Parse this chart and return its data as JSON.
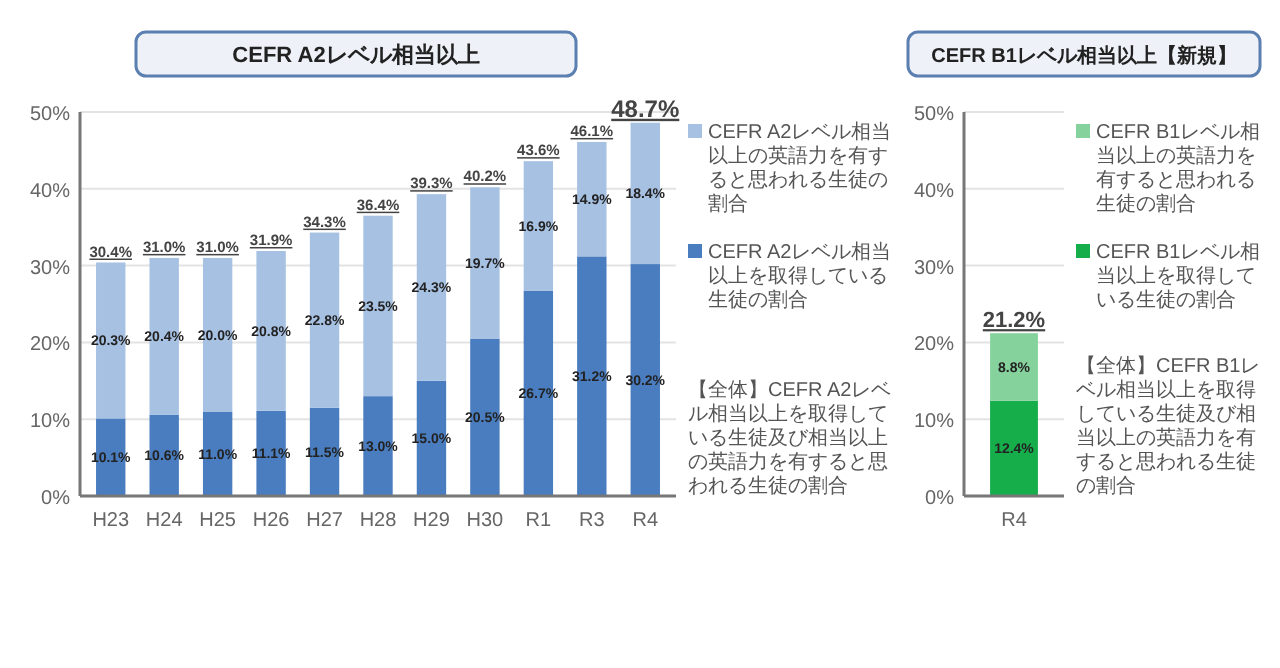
{
  "chart_data": [
    {
      "type": "bar",
      "title": "CEFR A2レベル相当以上",
      "categories": [
        "H23",
        "H24",
        "H25",
        "H26",
        "H27",
        "H28",
        "H29",
        "H30",
        "R1",
        "R3",
        "R4"
      ],
      "stacked": true,
      "legend": "right",
      "grid": "y",
      "series": [
        {
          "name": "CEFR A2レベル相当以上を取得している生徒の割合",
          "color": "#4a7dbf",
          "values": [
            10.1,
            10.6,
            11.0,
            11.1,
            11.5,
            13.0,
            15.0,
            20.5,
            26.7,
            31.2,
            30.2
          ],
          "value_labels": [
            "10.1%",
            "10.6%",
            "11.0%",
            "11.1%",
            "11.5%",
            "13.0%",
            "15.0%",
            "20.5%",
            "26.7%",
            "31.2%",
            "30.2%"
          ]
        },
        {
          "name": "CEFR A2レベル相当以上の英語力を有すると思われる生徒の割合",
          "color": "#a7c1e3",
          "values": [
            20.3,
            20.4,
            20.0,
            20.8,
            22.8,
            23.5,
            24.3,
            19.7,
            16.9,
            14.9,
            18.4
          ],
          "value_labels": [
            "20.3%",
            "20.4%",
            "20.0%",
            "20.8%",
            "22.8%",
            "23.5%",
            "24.3%",
            "19.7%",
            "16.9%",
            "14.9%",
            "18.4%"
          ]
        }
      ],
      "totals": [
        "30.4%",
        "31.0%",
        "31.0%",
        "31.9%",
        "34.3%",
        "36.4%",
        "39.3%",
        "40.2%",
        "43.6%",
        "46.1%",
        "48.7%"
      ],
      "ylim": [
        0,
        50
      ],
      "yticks": [
        {
          "value": 0,
          "label": "0%"
        },
        {
          "value": 10,
          "label": "10%"
        },
        {
          "value": 20,
          "label": "20%"
        },
        {
          "value": 30,
          "label": "30%"
        },
        {
          "value": 40,
          "label": "40%"
        },
        {
          "value": 50,
          "label": "50%"
        }
      ],
      "annotations": [
        "【全体】CEFR A2レベル相当以上を取得している生徒及び相当以上の英語力を有すると思われる生徒の割合"
      ]
    },
    {
      "type": "bar",
      "title": "CEFR B1レベル相当以上【新規】",
      "categories": [
        "R4"
      ],
      "stacked": true,
      "legend": "right",
      "grid": "y",
      "series": [
        {
          "name": "CEFR B1レベル相当以上を取得している生徒の割合",
          "color": "#16ad4b",
          "values": [
            12.4
          ],
          "value_labels": [
            "12.4%"
          ]
        },
        {
          "name": "CEFR B1レベル相当以上の英語力を有すると思われる生徒の割合",
          "color": "#86d29d",
          "values": [
            8.8
          ],
          "value_labels": [
            "8.8%"
          ]
        }
      ],
      "totals": [
        "21.2%"
      ],
      "ylim": [
        0,
        50
      ],
      "yticks": [
        {
          "value": 0,
          "label": "0%"
        },
        {
          "value": 10,
          "label": "10%"
        },
        {
          "value": 20,
          "label": "20%"
        },
        {
          "value": 30,
          "label": "30%"
        },
        {
          "value": 40,
          "label": "40%"
        },
        {
          "value": 50,
          "label": "50%"
        }
      ],
      "annotations": [
        "【全体】CEFR B1レベル相当以上を取得している生徒及び相当以上の英語力を有すると思われる生徒の割合"
      ]
    }
  ]
}
